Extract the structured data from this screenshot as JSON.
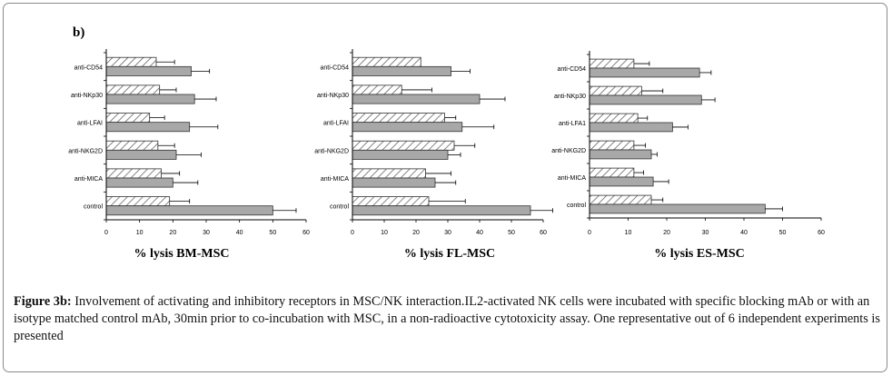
{
  "panel_label": "b)",
  "caption": {
    "label": "Figure 3b:",
    "text": " Involvement of activating and inhibitory receptors in MSC/NK interaction.IL2-activated NK cells were incubated with specific blocking mAb or with an isotype matched control mAb, 30min prior to co-incubation with MSC, in a non-radioactive cytotoxicity assay. One representative out of 6 independent experiments is presented"
  },
  "colors": {
    "isotype_bar": "#ffffff",
    "blocking_bar": "#a8a8a8",
    "axis": "#000000"
  },
  "chart_data": [
    {
      "type": "bar",
      "orientation": "horizontal",
      "xlabel": "% lysis BM-MSC",
      "xlim": [
        0,
        60
      ],
      "xticks": [
        0,
        10,
        20,
        30,
        40,
        50,
        60
      ],
      "categories": [
        "anti-CD54",
        "anti-NKp30",
        "anti-LFAI",
        "anti-NKG2D",
        "anti-MICA",
        "control"
      ],
      "series": [
        {
          "pattern": "hatched",
          "values": [
            15,
            16,
            13,
            15.5,
            16.5,
            19
          ],
          "errors": [
            5.5,
            5,
            4.5,
            5,
            5.5,
            6
          ]
        },
        {
          "pattern": "gray",
          "values": [
            25.5,
            26.5,
            25,
            21,
            20,
            50
          ],
          "errors": [
            5.5,
            6.5,
            8.5,
            7.5,
            7.5,
            7
          ]
        }
      ]
    },
    {
      "type": "bar",
      "orientation": "horizontal",
      "xlabel": "% lysis FL-MSC",
      "xlim": [
        0,
        60
      ],
      "xticks": [
        0,
        10,
        20,
        30,
        40,
        50,
        60
      ],
      "categories": [
        "anti-CD54",
        "anti-NKp30",
        "anti-LFAI",
        "anti-NKG2D",
        "anti-MICA",
        "control"
      ],
      "series": [
        {
          "pattern": "hatched",
          "values": [
            21.5,
            15.5,
            29,
            32,
            23,
            24
          ],
          "errors": [
            0,
            9.5,
            3.5,
            6.5,
            8,
            11.5
          ]
        },
        {
          "pattern": "gray",
          "values": [
            31,
            40,
            34.5,
            30,
            26,
            56
          ],
          "errors": [
            6,
            8,
            10,
            4,
            6.5,
            7
          ]
        }
      ]
    },
    {
      "type": "bar",
      "orientation": "horizontal",
      "xlabel": "% lysis ES-MSC",
      "xlim": [
        0,
        60
      ],
      "xticks": [
        0,
        10,
        20,
        30,
        40,
        50,
        60
      ],
      "categories": [
        "anti-CD54",
        "anti-NKp30",
        "anti-LFA1",
        "anti-NKG2D",
        "anti-MICA",
        "control"
      ],
      "series": [
        {
          "pattern": "hatched",
          "values": [
            11.5,
            13.5,
            12.5,
            11.5,
            11.5,
            16
          ],
          "errors": [
            4,
            5.5,
            2.5,
            3,
            2.5,
            3
          ]
        },
        {
          "pattern": "gray",
          "values": [
            28.5,
            29,
            21.5,
            16,
            16.5,
            45.5
          ],
          "errors": [
            3,
            3.5,
            4,
            1.5,
            4,
            4.5
          ]
        }
      ]
    }
  ]
}
